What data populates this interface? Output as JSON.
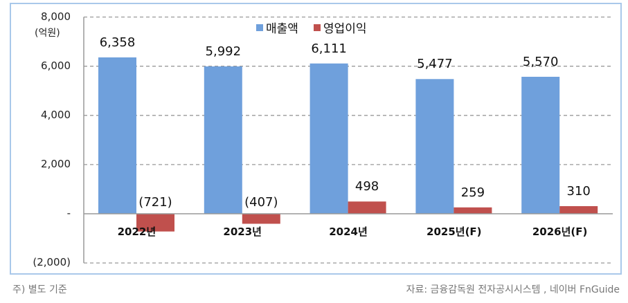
{
  "chart_data": {
    "type": "bar",
    "title": "",
    "unit_label": "(억원)",
    "xlabel": "",
    "ylabel": "",
    "ylim": [
      -2000,
      8000
    ],
    "yticks": [
      8000,
      6000,
      4000,
      2000,
      0,
      -2000
    ],
    "ytick_labels": [
      "8,000",
      "6,000",
      "4,000",
      "2,000",
      "-",
      "(2,000)"
    ],
    "grid": true,
    "legend_position": "top",
    "categories": [
      "2022년",
      "2023년",
      "2024년",
      "2025년(F)",
      "2026년(F)"
    ],
    "series": [
      {
        "name": "매출액",
        "color": "#6fa0dc",
        "values": [
          6358,
          5992,
          6111,
          5477,
          5570
        ],
        "labels": [
          "6,358",
          "5,992",
          "6,111",
          "5,477",
          "5,570"
        ]
      },
      {
        "name": "영업이익",
        "color": "#c0504d",
        "values": [
          -721,
          -407,
          498,
          259,
          310
        ],
        "labels": [
          "(721)",
          "(407)",
          "498",
          "259",
          "310"
        ]
      }
    ]
  },
  "footer": {
    "note": "주) 별도 기준",
    "source": "자료: 금융감독원 전자공시시스템 , 네이버 FnGuide"
  }
}
